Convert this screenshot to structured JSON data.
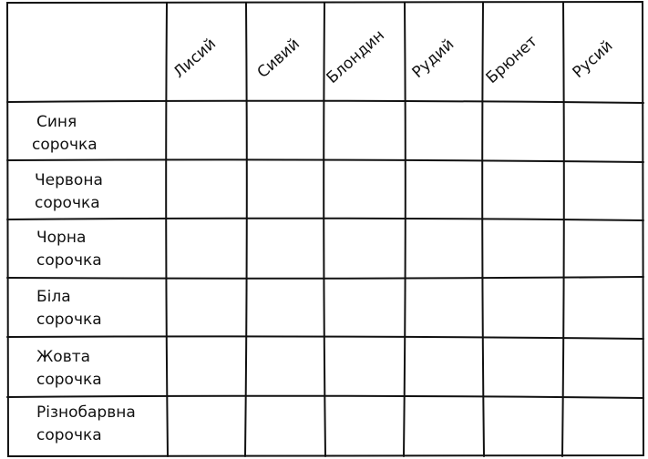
{
  "columns": [
    "Лисий",
    "Сивий",
    "Блондин",
    "Рудий",
    "Брюнет",
    "Русий"
  ],
  "rows": [
    {
      "line1": "Синя",
      "line2": "сорочка"
    },
    {
      "line1": "Червона",
      "line2": "сорочка"
    },
    {
      "line1": "Чорна",
      "line2": "сорочка"
    },
    {
      "line1": "Біла",
      "line2": "сорочка"
    },
    {
      "line1": "Жовта",
      "line2": "сорочка"
    },
    {
      "line1": "Різнобарвна",
      "line2": "сорочка"
    }
  ]
}
